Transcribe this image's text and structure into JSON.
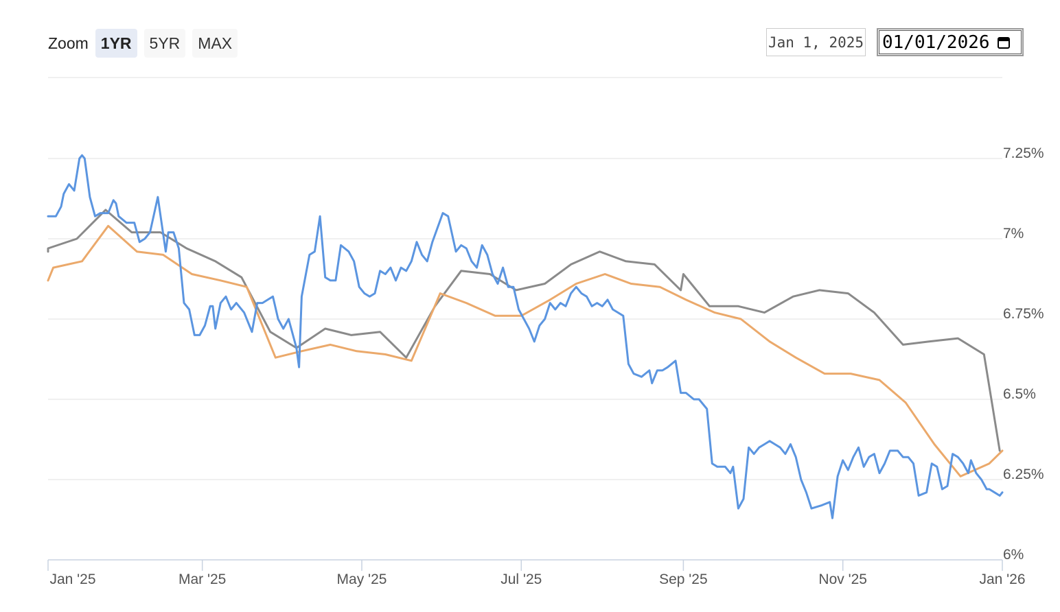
{
  "toolbar": {
    "zoom_label": "Zoom",
    "buttons": [
      {
        "label": "1YR",
        "active": true
      },
      {
        "label": "5YR",
        "active": false
      },
      {
        "label": "MAX",
        "active": false
      }
    ],
    "date_from": "Jan 1, 2025",
    "date_to": "01/01/2026"
  },
  "colors": {
    "series1": "#5b95e0",
    "series2": "#8a8a8a",
    "series3": "#eba96b",
    "grid": "#e2e2e2"
  },
  "chart_data": {
    "type": "line",
    "title": "",
    "xlabel": "",
    "ylabel": "",
    "x_range": [
      "2025-01-01",
      "2026-01-01"
    ],
    "ylim": [
      6.0,
      7.5
    ],
    "y_ticks": [
      {
        "value": 6.0,
        "label": "6%"
      },
      {
        "value": 6.25,
        "label": "6.25%"
      },
      {
        "value": 6.5,
        "label": "6.5%"
      },
      {
        "value": 6.75,
        "label": "6.75%"
      },
      {
        "value": 7.0,
        "label": "7%"
      },
      {
        "value": 7.25,
        "label": "7.25%"
      }
    ],
    "x_ticks": [
      {
        "date": "2025-01-01",
        "label": "Jan '25"
      },
      {
        "date": "2025-03-01",
        "label": "Mar '25"
      },
      {
        "date": "2025-05-01",
        "label": "May '25"
      },
      {
        "date": "2025-07-01",
        "label": "Jul '25"
      },
      {
        "date": "2025-09-01",
        "label": "Sep '25"
      },
      {
        "date": "2025-11-01",
        "label": "Nov '25"
      },
      {
        "date": "2026-01-01",
        "label": "Jan '26"
      }
    ],
    "legend": "none",
    "grid": true,
    "series": [
      {
        "color": "#5b95e0",
        "points": [
          [
            "2025-01-01",
            7.07
          ],
          [
            "2025-01-04",
            7.07
          ],
          [
            "2025-01-06",
            7.1
          ],
          [
            "2025-01-07",
            7.14
          ],
          [
            "2025-01-09",
            7.17
          ],
          [
            "2025-01-11",
            7.15
          ],
          [
            "2025-01-13",
            7.25
          ],
          [
            "2025-01-14",
            7.26
          ],
          [
            "2025-01-15",
            7.25
          ],
          [
            "2025-01-17",
            7.13
          ],
          [
            "2025-01-19",
            7.07
          ],
          [
            "2025-01-21",
            7.08
          ],
          [
            "2025-01-24",
            7.08
          ],
          [
            "2025-01-26",
            7.12
          ],
          [
            "2025-01-27",
            7.11
          ],
          [
            "2025-01-28",
            7.07
          ],
          [
            "2025-01-31",
            7.05
          ],
          [
            "2025-02-03",
            7.05
          ],
          [
            "2025-02-05",
            6.99
          ],
          [
            "2025-02-07",
            7.0
          ],
          [
            "2025-02-09",
            7.02
          ],
          [
            "2025-02-12",
            7.13
          ],
          [
            "2025-02-15",
            6.96
          ],
          [
            "2025-02-16",
            7.02
          ],
          [
            "2025-02-18",
            7.02
          ],
          [
            "2025-02-20",
            6.97
          ],
          [
            "2025-02-22",
            6.8
          ],
          [
            "2025-02-24",
            6.78
          ],
          [
            "2025-02-26",
            6.7
          ],
          [
            "2025-02-28",
            6.7
          ],
          [
            "2025-03-02",
            6.73
          ],
          [
            "2025-03-04",
            6.79
          ],
          [
            "2025-03-05",
            6.79
          ],
          [
            "2025-03-06",
            6.72
          ],
          [
            "2025-03-08",
            6.8
          ],
          [
            "2025-03-10",
            6.82
          ],
          [
            "2025-03-12",
            6.78
          ],
          [
            "2025-03-14",
            6.8
          ],
          [
            "2025-03-17",
            6.77
          ],
          [
            "2025-03-20",
            6.71
          ],
          [
            "2025-03-22",
            6.8
          ],
          [
            "2025-03-24",
            6.8
          ],
          [
            "2025-03-26",
            6.81
          ],
          [
            "2025-03-28",
            6.82
          ],
          [
            "2025-03-30",
            6.75
          ],
          [
            "2025-04-01",
            6.72
          ],
          [
            "2025-04-03",
            6.75
          ],
          [
            "2025-04-06",
            6.66
          ],
          [
            "2025-04-07",
            6.6
          ],
          [
            "2025-04-08",
            6.82
          ],
          [
            "2025-04-11",
            6.95
          ],
          [
            "2025-04-13",
            6.96
          ],
          [
            "2025-04-15",
            7.07
          ],
          [
            "2025-04-17",
            6.88
          ],
          [
            "2025-04-19",
            6.87
          ],
          [
            "2025-04-21",
            6.87
          ],
          [
            "2025-04-23",
            6.98
          ],
          [
            "2025-04-26",
            6.96
          ],
          [
            "2025-04-28",
            6.93
          ],
          [
            "2025-04-30",
            6.85
          ],
          [
            "2025-05-02",
            6.83
          ],
          [
            "2025-05-04",
            6.82
          ],
          [
            "2025-05-06",
            6.83
          ],
          [
            "2025-05-08",
            6.9
          ],
          [
            "2025-05-10",
            6.89
          ],
          [
            "2025-05-12",
            6.91
          ],
          [
            "2025-05-14",
            6.87
          ],
          [
            "2025-05-16",
            6.91
          ],
          [
            "2025-05-18",
            6.9
          ],
          [
            "2025-05-20",
            6.93
          ],
          [
            "2025-05-22",
            6.99
          ],
          [
            "2025-05-24",
            6.95
          ],
          [
            "2025-05-26",
            6.93
          ],
          [
            "2025-05-28",
            6.99
          ],
          [
            "2025-06-01",
            7.08
          ],
          [
            "2025-06-03",
            7.07
          ],
          [
            "2025-06-06",
            6.96
          ],
          [
            "2025-06-08",
            6.98
          ],
          [
            "2025-06-10",
            6.97
          ],
          [
            "2025-06-12",
            6.93
          ],
          [
            "2025-06-14",
            6.91
          ],
          [
            "2025-06-16",
            6.98
          ],
          [
            "2025-06-18",
            6.95
          ],
          [
            "2025-06-20",
            6.89
          ],
          [
            "2025-06-22",
            6.86
          ],
          [
            "2025-06-24",
            6.91
          ],
          [
            "2025-06-26",
            6.85
          ],
          [
            "2025-06-28",
            6.85
          ],
          [
            "2025-06-30",
            6.78
          ],
          [
            "2025-07-02",
            6.75
          ],
          [
            "2025-07-04",
            6.72
          ],
          [
            "2025-07-06",
            6.68
          ],
          [
            "2025-07-08",
            6.73
          ],
          [
            "2025-07-10",
            6.75
          ],
          [
            "2025-07-12",
            6.8
          ],
          [
            "2025-07-14",
            6.78
          ],
          [
            "2025-07-16",
            6.8
          ],
          [
            "2025-07-18",
            6.79
          ],
          [
            "2025-07-20",
            6.83
          ],
          [
            "2025-07-22",
            6.85
          ],
          [
            "2025-07-24",
            6.83
          ],
          [
            "2025-07-26",
            6.82
          ],
          [
            "2025-07-28",
            6.79
          ],
          [
            "2025-07-30",
            6.8
          ],
          [
            "2025-08-01",
            6.79
          ],
          [
            "2025-08-03",
            6.81
          ],
          [
            "2025-08-05",
            6.78
          ],
          [
            "2025-08-07",
            6.77
          ],
          [
            "2025-08-09",
            6.76
          ],
          [
            "2025-08-11",
            6.61
          ],
          [
            "2025-08-13",
            6.58
          ],
          [
            "2025-08-16",
            6.57
          ],
          [
            "2025-08-19",
            6.59
          ],
          [
            "2025-08-20",
            6.55
          ],
          [
            "2025-08-22",
            6.59
          ],
          [
            "2025-08-24",
            6.59
          ],
          [
            "2025-08-26",
            6.6
          ],
          [
            "2025-08-29",
            6.62
          ],
          [
            "2025-08-31",
            6.52
          ],
          [
            "2025-09-02",
            6.52
          ],
          [
            "2025-09-05",
            6.5
          ],
          [
            "2025-09-07",
            6.5
          ],
          [
            "2025-09-10",
            6.47
          ],
          [
            "2025-09-12",
            6.3
          ],
          [
            "2025-09-14",
            6.29
          ],
          [
            "2025-09-17",
            6.29
          ],
          [
            "2025-09-19",
            6.27
          ],
          [
            "2025-09-20",
            6.29
          ],
          [
            "2025-09-22",
            6.16
          ],
          [
            "2025-09-24",
            6.19
          ],
          [
            "2025-09-26",
            6.35
          ],
          [
            "2025-09-28",
            6.33
          ],
          [
            "2025-09-30",
            6.35
          ],
          [
            "2025-10-02",
            6.36
          ],
          [
            "2025-10-04",
            6.37
          ],
          [
            "2025-10-06",
            6.36
          ],
          [
            "2025-10-08",
            6.35
          ],
          [
            "2025-10-10",
            6.33
          ],
          [
            "2025-10-12",
            6.36
          ],
          [
            "2025-10-14",
            6.32
          ],
          [
            "2025-10-16",
            6.25
          ],
          [
            "2025-10-18",
            6.21
          ],
          [
            "2025-10-20",
            6.16
          ],
          [
            "2025-10-24",
            6.17
          ],
          [
            "2025-10-27",
            6.18
          ],
          [
            "2025-10-28",
            6.13
          ],
          [
            "2025-10-30",
            6.26
          ],
          [
            "2025-11-01",
            6.31
          ],
          [
            "2025-11-03",
            6.28
          ],
          [
            "2025-11-05",
            6.32
          ],
          [
            "2025-11-07",
            6.35
          ],
          [
            "2025-11-09",
            6.29
          ],
          [
            "2025-11-11",
            6.32
          ],
          [
            "2025-11-13",
            6.33
          ],
          [
            "2025-11-15",
            6.27
          ],
          [
            "2025-11-17",
            6.3
          ],
          [
            "2025-11-19",
            6.34
          ],
          [
            "2025-11-22",
            6.34
          ],
          [
            "2025-11-24",
            6.32
          ],
          [
            "2025-11-26",
            6.32
          ],
          [
            "2025-11-28",
            6.3
          ],
          [
            "2025-11-30",
            6.2
          ],
          [
            "2025-12-03",
            6.21
          ],
          [
            "2025-12-05",
            6.3
          ],
          [
            "2025-12-07",
            6.29
          ],
          [
            "2025-12-09",
            6.22
          ],
          [
            "2025-12-11",
            6.23
          ],
          [
            "2025-12-13",
            6.33
          ],
          [
            "2025-12-15",
            6.32
          ],
          [
            "2025-12-17",
            6.3
          ],
          [
            "2025-12-19",
            6.27
          ],
          [
            "2025-12-20",
            6.31
          ],
          [
            "2025-12-22",
            6.27
          ],
          [
            "2025-12-24",
            6.25
          ],
          [
            "2025-12-26",
            6.22
          ],
          [
            "2025-12-27",
            6.22
          ],
          [
            "2025-12-29",
            6.21
          ],
          [
            "2025-12-31",
            6.2
          ],
          [
            "2026-01-01",
            6.21
          ]
        ]
      },
      {
        "color": "#8a8a8a",
        "points": [
          [
            "2025-01-01",
            6.96
          ],
          [
            "2025-01-01",
            6.97
          ],
          [
            "2025-01-12",
            7.0
          ],
          [
            "2025-01-23",
            7.09
          ],
          [
            "2025-02-02",
            7.02
          ],
          [
            "2025-02-13",
            7.02
          ],
          [
            "2025-02-23",
            6.97
          ],
          [
            "2025-03-06",
            6.93
          ],
          [
            "2025-03-16",
            6.88
          ],
          [
            "2025-03-27",
            6.71
          ],
          [
            "2025-04-06",
            6.66
          ],
          [
            "2025-04-17",
            6.72
          ],
          [
            "2025-04-27",
            6.7
          ],
          [
            "2025-05-08",
            6.71
          ],
          [
            "2025-05-18",
            6.63
          ],
          [
            "2025-05-29",
            6.79
          ],
          [
            "2025-06-08",
            6.9
          ],
          [
            "2025-06-19",
            6.89
          ],
          [
            "2025-06-29",
            6.84
          ],
          [
            "2025-07-10",
            6.86
          ],
          [
            "2025-07-20",
            6.92
          ],
          [
            "2025-07-31",
            6.96
          ],
          [
            "2025-08-10",
            6.93
          ],
          [
            "2025-08-21",
            6.92
          ],
          [
            "2025-08-31",
            6.84
          ],
          [
            "2025-09-01",
            6.89
          ],
          [
            "2025-09-11",
            6.79
          ],
          [
            "2025-09-22",
            6.79
          ],
          [
            "2025-10-02",
            6.77
          ],
          [
            "2025-10-13",
            6.82
          ],
          [
            "2025-10-23",
            6.84
          ],
          [
            "2025-11-03",
            6.83
          ],
          [
            "2025-11-13",
            6.77
          ],
          [
            "2025-11-24",
            6.67
          ],
          [
            "2025-12-04",
            6.68
          ],
          [
            "2025-12-15",
            6.69
          ],
          [
            "2025-12-25",
            6.64
          ],
          [
            "2025-12-28",
            6.49
          ],
          [
            "2025-12-30",
            6.39
          ],
          [
            "2025-12-31",
            6.34
          ],
          [
            "2025-12-31",
            6.34
          ]
        ]
      },
      {
        "color": "#eba96b",
        "points": [
          [
            "2025-01-01",
            6.87
          ],
          [
            "2025-01-03",
            6.91
          ],
          [
            "2025-01-14",
            6.93
          ],
          [
            "2025-01-24",
            7.04
          ],
          [
            "2025-02-04",
            6.96
          ],
          [
            "2025-02-14",
            6.95
          ],
          [
            "2025-02-25",
            6.89
          ],
          [
            "2025-03-08",
            6.87
          ],
          [
            "2025-03-18",
            6.85
          ],
          [
            "2025-03-29",
            6.63
          ],
          [
            "2025-04-08",
            6.65
          ],
          [
            "2025-04-19",
            6.67
          ],
          [
            "2025-04-29",
            6.65
          ],
          [
            "2025-05-10",
            6.64
          ],
          [
            "2025-05-20",
            6.62
          ],
          [
            "2025-05-31",
            6.83
          ],
          [
            "2025-06-10",
            6.8
          ],
          [
            "2025-06-21",
            6.76
          ],
          [
            "2025-07-01",
            6.76
          ],
          [
            "2025-07-12",
            6.81
          ],
          [
            "2025-07-22",
            6.86
          ],
          [
            "2025-08-02",
            6.89
          ],
          [
            "2025-08-12",
            6.86
          ],
          [
            "2025-08-23",
            6.85
          ],
          [
            "2025-09-02",
            6.81
          ],
          [
            "2025-09-13",
            6.77
          ],
          [
            "2025-09-23",
            6.75
          ],
          [
            "2025-10-04",
            6.68
          ],
          [
            "2025-10-14",
            6.63
          ],
          [
            "2025-10-25",
            6.58
          ],
          [
            "2025-11-04",
            6.58
          ],
          [
            "2025-11-15",
            6.56
          ],
          [
            "2025-11-25",
            6.49
          ],
          [
            "2025-12-06",
            6.36
          ],
          [
            "2025-12-16",
            6.26
          ],
          [
            "2025-12-27",
            6.3
          ],
          [
            "2026-01-01",
            6.34
          ]
        ]
      }
    ]
  }
}
